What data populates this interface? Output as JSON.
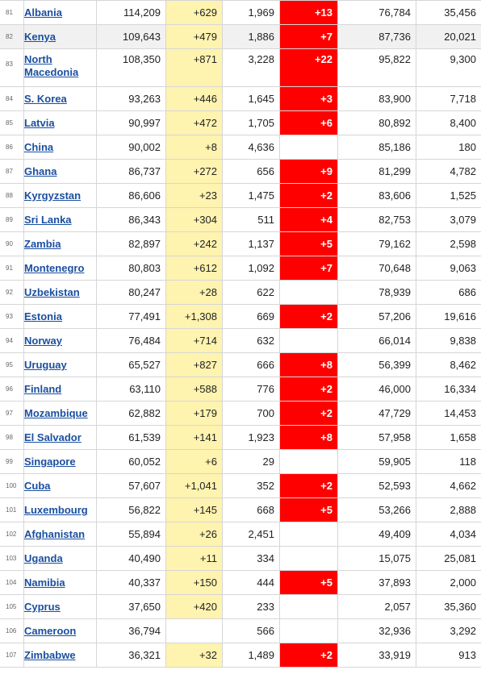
{
  "table": {
    "rows": [
      {
        "rank": "81",
        "country": "Albania",
        "total_cases": "114,209",
        "new_cases": "+629",
        "total_deaths": "1,969",
        "new_deaths": "+13",
        "total_recovered": "76,784",
        "active_cases": "35,456"
      },
      {
        "rank": "82",
        "country": "Kenya",
        "total_cases": "109,643",
        "new_cases": "+479",
        "total_deaths": "1,886",
        "new_deaths": "+7",
        "total_recovered": "87,736",
        "active_cases": "20,021"
      },
      {
        "rank": "83",
        "country": "North Macedonia",
        "total_cases": "108,350",
        "new_cases": "+871",
        "total_deaths": "3,228",
        "new_deaths": "+22",
        "total_recovered": "95,822",
        "active_cases": "9,300"
      },
      {
        "rank": "84",
        "country": "S. Korea",
        "total_cases": "93,263",
        "new_cases": "+446",
        "total_deaths": "1,645",
        "new_deaths": "+3",
        "total_recovered": "83,900",
        "active_cases": "7,718"
      },
      {
        "rank": "85",
        "country": "Latvia",
        "total_cases": "90,997",
        "new_cases": "+472",
        "total_deaths": "1,705",
        "new_deaths": "+6",
        "total_recovered": "80,892",
        "active_cases": "8,400"
      },
      {
        "rank": "86",
        "country": "China",
        "total_cases": "90,002",
        "new_cases": "+8",
        "total_deaths": "4,636",
        "new_deaths": "",
        "total_recovered": "85,186",
        "active_cases": "180"
      },
      {
        "rank": "87",
        "country": "Ghana",
        "total_cases": "86,737",
        "new_cases": "+272",
        "total_deaths": "656",
        "new_deaths": "+9",
        "total_recovered": "81,299",
        "active_cases": "4,782"
      },
      {
        "rank": "88",
        "country": "Kyrgyzstan",
        "total_cases": "86,606",
        "new_cases": "+23",
        "total_deaths": "1,475",
        "new_deaths": "+2",
        "total_recovered": "83,606",
        "active_cases": "1,525"
      },
      {
        "rank": "89",
        "country": "Sri Lanka",
        "total_cases": "86,343",
        "new_cases": "+304",
        "total_deaths": "511",
        "new_deaths": "+4",
        "total_recovered": "82,753",
        "active_cases": "3,079"
      },
      {
        "rank": "90",
        "country": "Zambia",
        "total_cases": "82,897",
        "new_cases": "+242",
        "total_deaths": "1,137",
        "new_deaths": "+5",
        "total_recovered": "79,162",
        "active_cases": "2,598"
      },
      {
        "rank": "91",
        "country": "Montenegro",
        "total_cases": "80,803",
        "new_cases": "+612",
        "total_deaths": "1,092",
        "new_deaths": "+7",
        "total_recovered": "70,648",
        "active_cases": "9,063"
      },
      {
        "rank": "92",
        "country": "Uzbekistan",
        "total_cases": "80,247",
        "new_cases": "+28",
        "total_deaths": "622",
        "new_deaths": "",
        "total_recovered": "78,939",
        "active_cases": "686"
      },
      {
        "rank": "93",
        "country": "Estonia",
        "total_cases": "77,491",
        "new_cases": "+1,308",
        "total_deaths": "669",
        "new_deaths": "+2",
        "total_recovered": "57,206",
        "active_cases": "19,616"
      },
      {
        "rank": "94",
        "country": "Norway",
        "total_cases": "76,484",
        "new_cases": "+714",
        "total_deaths": "632",
        "new_deaths": "",
        "total_recovered": "66,014",
        "active_cases": "9,838"
      },
      {
        "rank": "95",
        "country": "Uruguay",
        "total_cases": "65,527",
        "new_cases": "+827",
        "total_deaths": "666",
        "new_deaths": "+8",
        "total_recovered": "56,399",
        "active_cases": "8,462"
      },
      {
        "rank": "96",
        "country": "Finland",
        "total_cases": "63,110",
        "new_cases": "+588",
        "total_deaths": "776",
        "new_deaths": "+2",
        "total_recovered": "46,000",
        "active_cases": "16,334"
      },
      {
        "rank": "97",
        "country": "Mozambique",
        "total_cases": "62,882",
        "new_cases": "+179",
        "total_deaths": "700",
        "new_deaths": "+2",
        "total_recovered": "47,729",
        "active_cases": "14,453"
      },
      {
        "rank": "98",
        "country": "El Salvador",
        "total_cases": "61,539",
        "new_cases": "+141",
        "total_deaths": "1,923",
        "new_deaths": "+8",
        "total_recovered": "57,958",
        "active_cases": "1,658"
      },
      {
        "rank": "99",
        "country": "Singapore",
        "total_cases": "60,052",
        "new_cases": "+6",
        "total_deaths": "29",
        "new_deaths": "",
        "total_recovered": "59,905",
        "active_cases": "118"
      },
      {
        "rank": "100",
        "country": "Cuba",
        "total_cases": "57,607",
        "new_cases": "+1,041",
        "total_deaths": "352",
        "new_deaths": "+2",
        "total_recovered": "52,593",
        "active_cases": "4,662"
      },
      {
        "rank": "101",
        "country": "Luxembourg",
        "total_cases": "56,822",
        "new_cases": "+145",
        "total_deaths": "668",
        "new_deaths": "+5",
        "total_recovered": "53,266",
        "active_cases": "2,888"
      },
      {
        "rank": "102",
        "country": "Afghanistan",
        "total_cases": "55,894",
        "new_cases": "+26",
        "total_deaths": "2,451",
        "new_deaths": "",
        "total_recovered": "49,409",
        "active_cases": "4,034"
      },
      {
        "rank": "103",
        "country": "Uganda",
        "total_cases": "40,490",
        "new_cases": "+11",
        "total_deaths": "334",
        "new_deaths": "",
        "total_recovered": "15,075",
        "active_cases": "25,081"
      },
      {
        "rank": "104",
        "country": "Namibia",
        "total_cases": "40,337",
        "new_cases": "+150",
        "total_deaths": "444",
        "new_deaths": "+5",
        "total_recovered": "37,893",
        "active_cases": "2,000"
      },
      {
        "rank": "105",
        "country": "Cyprus",
        "total_cases": "37,650",
        "new_cases": "+420",
        "total_deaths": "233",
        "new_deaths": "",
        "total_recovered": "2,057",
        "active_cases": "35,360"
      },
      {
        "rank": "106",
        "country": "Cameroon",
        "total_cases": "36,794",
        "new_cases": "",
        "total_deaths": "566",
        "new_deaths": "",
        "total_recovered": "32,936",
        "active_cases": "3,292"
      },
      {
        "rank": "107",
        "country": "Zimbabwe",
        "total_cases": "36,321",
        "new_cases": "+32",
        "total_deaths": "1,489",
        "new_deaths": "+2",
        "total_recovered": "33,919",
        "active_cases": "913"
      }
    ]
  },
  "colors": {
    "new_cases_bg": "#fff3b0",
    "new_deaths_bg": "#ff0000",
    "link": "#1a4fa0",
    "highlight_row": "#f1f1f1"
  }
}
